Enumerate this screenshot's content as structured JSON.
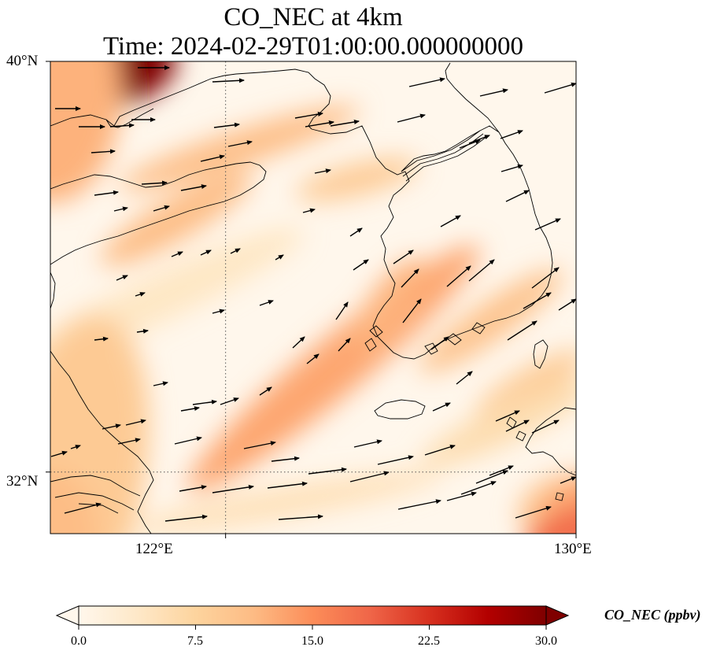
{
  "title": {
    "line1": "CO_NEC at 4km",
    "line2": "Time: 2024-02-29T01:00:00.000000000"
  },
  "map": {
    "extent_lon": [
      118,
      130
    ],
    "extent_lat": [
      30.8,
      40
    ],
    "lat_ticks": [
      {
        "value": 40,
        "label": "40°N"
      },
      {
        "value": 32,
        "label": "32°N"
      }
    ],
    "lon_ticks": [
      {
        "value": 122,
        "label": "122°E"
      },
      {
        "value": 130,
        "label": "130°E"
      }
    ],
    "gridlines": {
      "lon": 122,
      "lat": 32,
      "style": "dotted"
    }
  },
  "colorbar": {
    "label": "CO_NEC (ppbv)",
    "colormap": "OrRd",
    "range": [
      0,
      30
    ],
    "extend": "both",
    "ticks": [
      {
        "value": 0,
        "label": "0.0"
      },
      {
        "value": 7.5,
        "label": "7.5"
      },
      {
        "value": 15,
        "label": "15.0"
      },
      {
        "value": 22.5,
        "label": "22.5"
      },
      {
        "value": 30,
        "label": "30.0"
      }
    ],
    "stops": [
      "#fff7ec",
      "#fee8c8",
      "#fdd49e",
      "#fdbb84",
      "#fc8d59",
      "#ef6548",
      "#d7301f",
      "#b30000",
      "#7f0000"
    ]
  },
  "colors": {
    "background": "#fff7ec",
    "coastline": "#000000",
    "arrow": "#000000"
  }
}
